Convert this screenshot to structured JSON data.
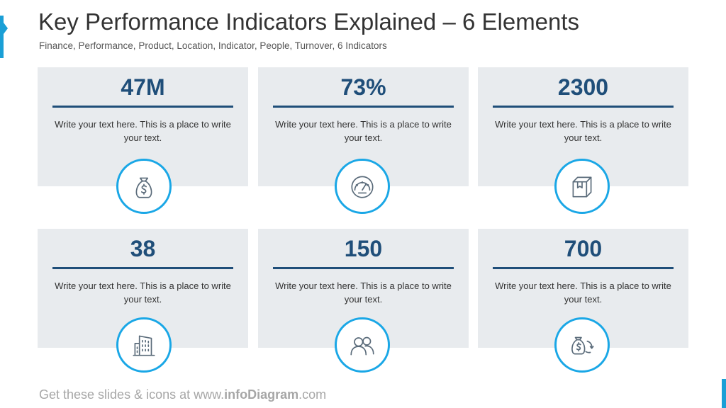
{
  "title": "Key Performance Indicators Explained – 6 Elements",
  "subtitle": "Finance, Performance, Product, Location, Indicator, People, Turnover, 6 Indicators",
  "footer": {
    "prefix": "Get these slides & icons at www.",
    "brand": "infoDiagram",
    "suffix": ".com"
  },
  "colors": {
    "accent": "#1aa7e6",
    "value": "#1f4e79",
    "card_bg": "#e8ebee"
  },
  "kpis": [
    {
      "value": "47M",
      "text": "Write your text here. This is a place to write your text.",
      "icon": "money-bag-icon"
    },
    {
      "value": "73%",
      "text": "Write your text here. This is a place to write your text.",
      "icon": "gauge-icon"
    },
    {
      "value": "2300",
      "text": "Write your text here. This is a place to write your text.",
      "icon": "box-icon"
    },
    {
      "value": "38",
      "text": "Write your text here. This is a place to write your text.",
      "icon": "building-icon"
    },
    {
      "value": "150",
      "text": "Write your text here. This is a place to write your text.",
      "icon": "people-icon"
    },
    {
      "value": "700",
      "text": "Write your text here. This is a place to write your text.",
      "icon": "money-turnover-icon"
    }
  ]
}
